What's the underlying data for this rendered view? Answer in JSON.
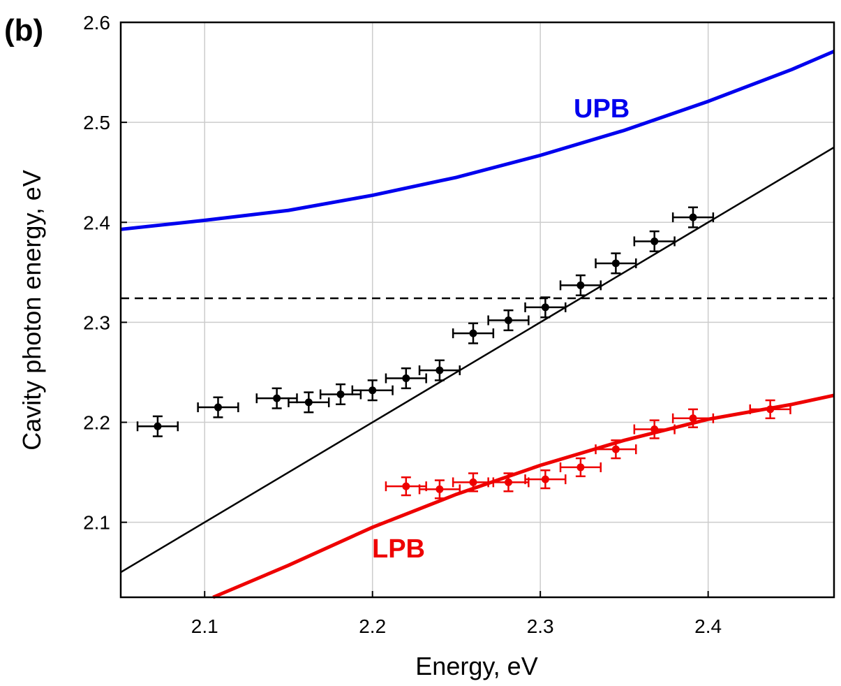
{
  "chart_data": {
    "type": "scatter",
    "panel_label": "(b)",
    "xlabel": "Energy, eV",
    "ylabel": "Cavity photon energy, eV",
    "xlim": [
      2.05,
      2.475
    ],
    "ylim": [
      2.025,
      2.6
    ],
    "xticks": [
      2.1,
      2.2,
      2.3,
      2.4
    ],
    "xtick_labels": [
      "2.1",
      "2.2",
      "2.3",
      "2.4"
    ],
    "yticks": [
      2.1,
      2.2,
      2.3,
      2.4,
      2.5,
      2.6
    ],
    "ytick_labels": [
      "2.1",
      "2.2",
      "2.3",
      "2.4",
      "2.5",
      "2.6"
    ],
    "grid": true,
    "colors": {
      "upb": "#0000ee",
      "lpb": "#ee0000",
      "points": "#000000",
      "diagonal": "#000000",
      "grid": "#cccccc"
    },
    "horizontal_reference": 2.324,
    "diagonal_line": {
      "x": [
        2.05,
        2.475
      ],
      "y": [
        2.05,
        2.475
      ]
    },
    "upb_curve": {
      "label": "UPB",
      "x": [
        2.05,
        2.1,
        2.15,
        2.2,
        2.25,
        2.3,
        2.35,
        2.4,
        2.45,
        2.475
      ],
      "y": [
        2.393,
        2.402,
        2.412,
        2.427,
        2.445,
        2.467,
        2.492,
        2.521,
        2.553,
        2.571
      ]
    },
    "lpb_curve": {
      "label": "LPB",
      "x": [
        2.105,
        2.15,
        2.2,
        2.25,
        2.3,
        2.35,
        2.4,
        2.45,
        2.475
      ],
      "y": [
        2.025,
        2.057,
        2.095,
        2.128,
        2.157,
        2.182,
        2.203,
        2.218,
        2.227
      ]
    },
    "black_points": {
      "x": [
        2.072,
        2.108,
        2.143,
        2.162,
        2.181,
        2.2,
        2.22,
        2.24,
        2.26,
        2.281,
        2.303,
        2.324,
        2.345,
        2.368,
        2.391
      ],
      "y": [
        2.196,
        2.215,
        2.224,
        2.22,
        2.228,
        2.232,
        2.244,
        2.252,
        2.289,
        2.302,
        2.315,
        2.337,
        2.359,
        2.381,
        2.405
      ],
      "xerr": 0.012,
      "yerr": 0.01
    },
    "red_points": {
      "x": [
        2.22,
        2.24,
        2.26,
        2.281,
        2.303,
        2.324,
        2.345,
        2.368,
        2.391,
        2.437
      ],
      "y": [
        2.136,
        2.133,
        2.14,
        2.14,
        2.143,
        2.155,
        2.173,
        2.193,
        2.204,
        2.213
      ],
      "xerr": 0.012,
      "yerr": 0.009
    }
  }
}
